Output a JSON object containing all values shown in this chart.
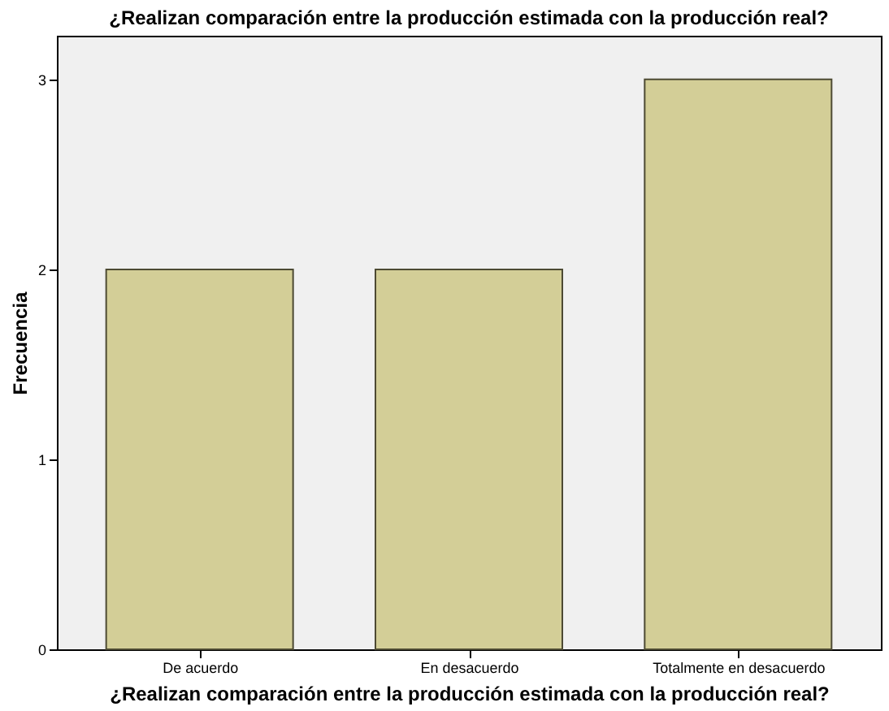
{
  "chart_data": {
    "type": "bar",
    "title": "¿Realizan comparación entre la producción estimada con la producción real?",
    "xlabel": "¿Realizan comparación entre la producción estimada con la producción real?",
    "ylabel": "Frecuencia",
    "categories": [
      "De acuerdo",
      "En desacuerdo",
      "Totalmente en desacuerdo"
    ],
    "values": [
      2,
      2,
      3
    ],
    "color": "#d3ce97",
    "ylim": [
      0,
      3.23
    ],
    "yticks": [
      0,
      1,
      2,
      3
    ],
    "grid": false
  }
}
